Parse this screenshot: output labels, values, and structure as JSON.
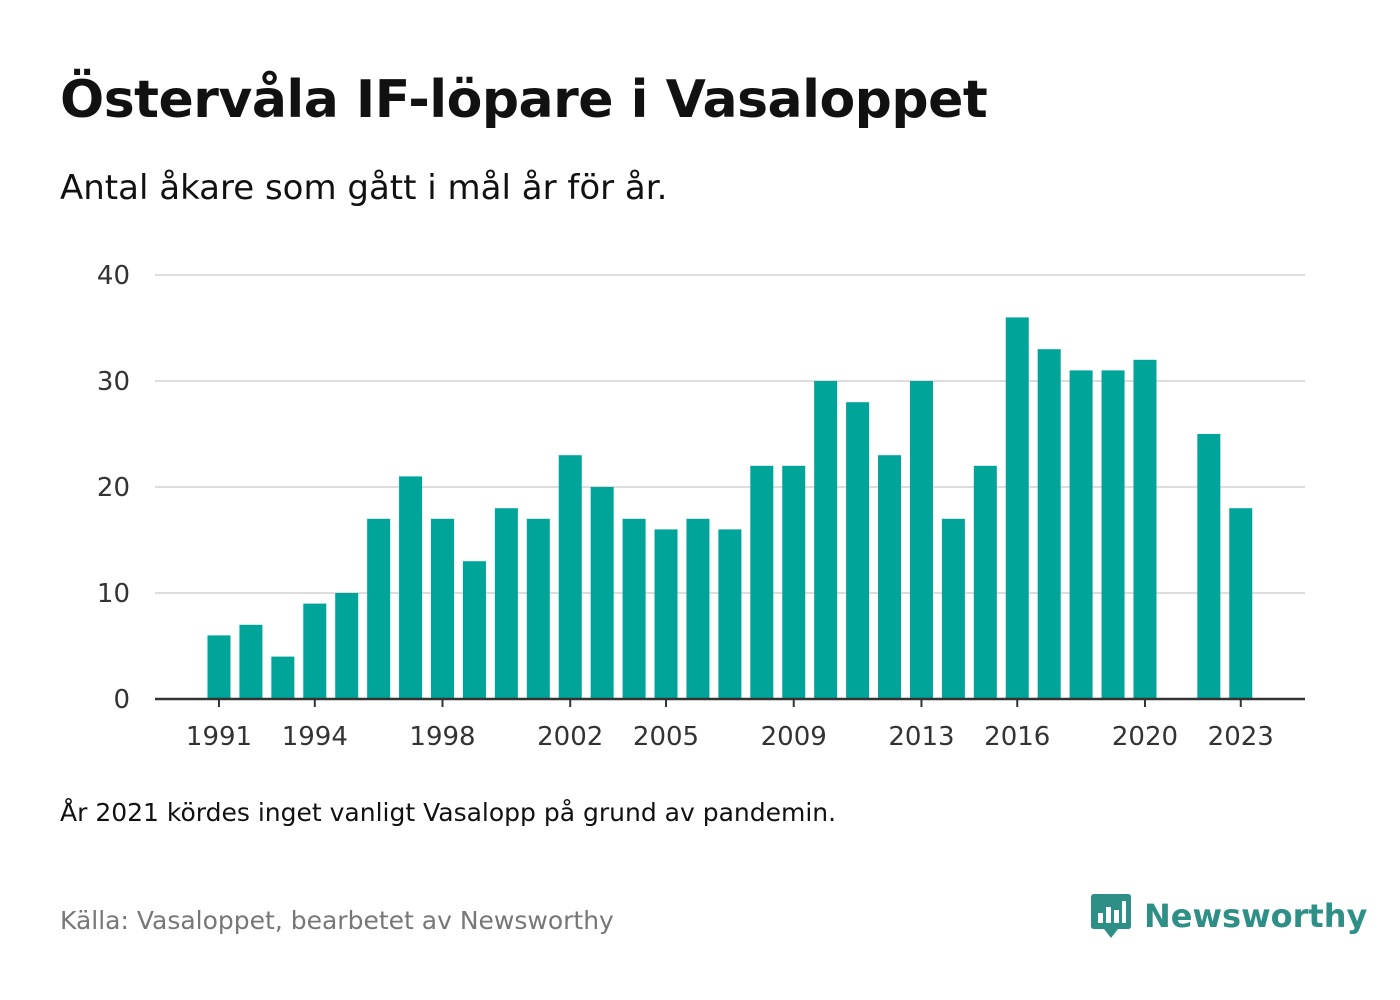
{
  "header": {
    "title": "Östervåla IF-löpare i Vasaloppet",
    "subtitle": "Antal åkare som gått i mål år för år."
  },
  "footer": {
    "note": "År 2021 kördes inget vanligt Vasalopp på grund av pandemin.",
    "source": "Källa: Vasaloppet, bearbetet av Newsworthy",
    "logo_text": "Newsworthy",
    "logo_icon": "newsworthy-logo-icon"
  },
  "colors": {
    "bar": "#00a499",
    "brand": "#2e8f87",
    "grid": "#dddddd",
    "axis": "#333333"
  },
  "chart_data": {
    "type": "bar",
    "title": "Östervåla IF-löpare i Vasaloppet",
    "subtitle": "Antal åkare som gått i mål år för år.",
    "xlabel": "",
    "ylabel": "",
    "x": [
      1991,
      1992,
      1993,
      1994,
      1995,
      1996,
      1997,
      1998,
      1999,
      2000,
      2001,
      2002,
      2003,
      2004,
      2005,
      2006,
      2007,
      2008,
      2009,
      2010,
      2011,
      2012,
      2013,
      2014,
      2015,
      2016,
      2017,
      2018,
      2019,
      2020,
      2021,
      2022,
      2023
    ],
    "values": [
      6,
      7,
      4,
      9,
      10,
      17,
      21,
      17,
      13,
      18,
      17,
      23,
      20,
      17,
      16,
      17,
      16,
      22,
      22,
      30,
      28,
      23,
      30,
      17,
      22,
      36,
      33,
      31,
      31,
      32,
      null,
      25,
      18
    ],
    "x_tick_labels": [
      "1991",
      "1994",
      "1998",
      "2002",
      "2005",
      "2009",
      "2013",
      "2016",
      "2020",
      "2023"
    ],
    "y_ticks": [
      0,
      10,
      20,
      30,
      40
    ],
    "ylim": [
      0,
      40
    ],
    "grid": true,
    "legend": "none"
  }
}
